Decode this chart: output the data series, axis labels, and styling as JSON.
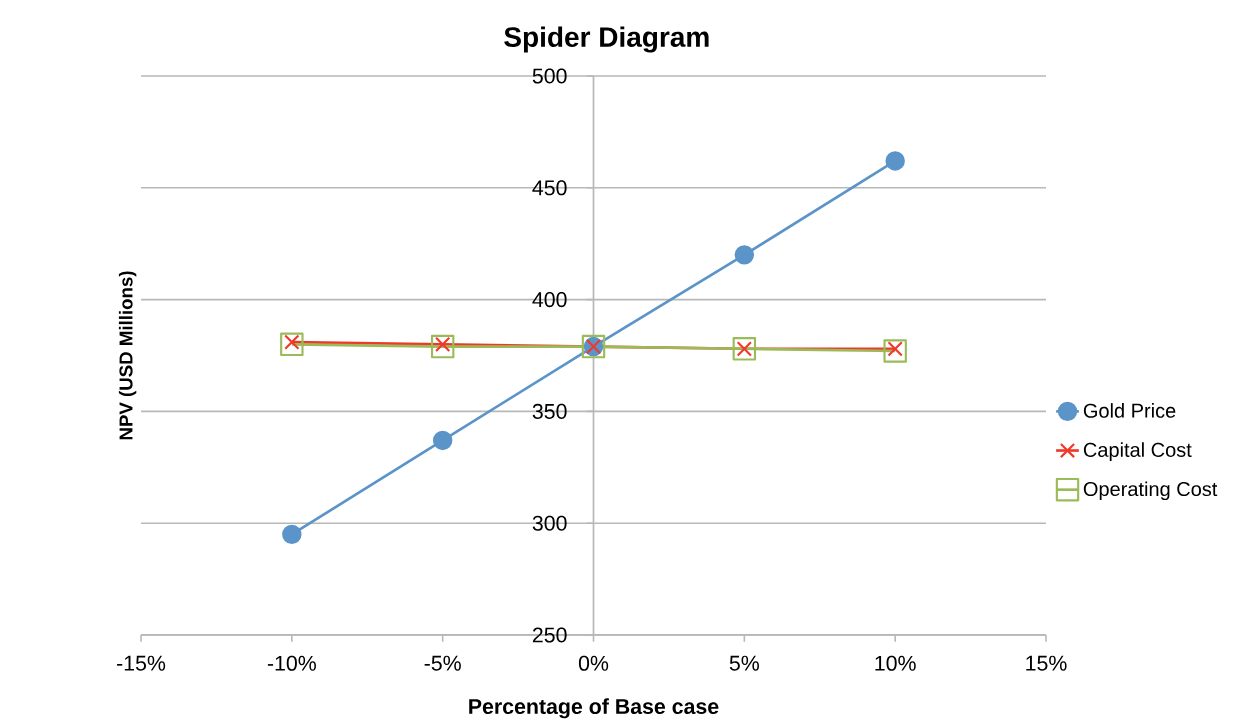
{
  "chart_data": {
    "type": "line",
    "title": "Spider Diagram",
    "xlabel": "Percentage of Base case",
    "ylabel": "NPV (USD Millions)",
    "x": [
      -10,
      -5,
      0,
      5,
      10
    ],
    "series": [
      {
        "name": "Gold Price",
        "color": "#5b94c8",
        "marker": "circle",
        "values": [
          295,
          337,
          379,
          420,
          462
        ]
      },
      {
        "name": "Capital Cost",
        "color": "#f0382b",
        "marker": "cross",
        "values": [
          381,
          380,
          379,
          378,
          378
        ]
      },
      {
        "name": "Operating Cost",
        "color": "#9bbb59",
        "marker": "square",
        "values": [
          380,
          379,
          379,
          378,
          377
        ]
      }
    ],
    "xlim": [
      -15,
      15
    ],
    "xticks": [
      {
        "value": -15,
        "label": "-15%"
      },
      {
        "value": -10,
        "label": "-10%"
      },
      {
        "value": -5,
        "label": "-5%"
      },
      {
        "value": 0,
        "label": "0%"
      },
      {
        "value": 5,
        "label": "5%"
      },
      {
        "value": 10,
        "label": "10%"
      },
      {
        "value": 15,
        "label": "15%"
      }
    ],
    "ylim": [
      250,
      500
    ],
    "yticks": [
      250,
      300,
      350,
      400,
      450,
      500
    ],
    "grid": "y",
    "legend": "right",
    "line_style": "solid"
  }
}
